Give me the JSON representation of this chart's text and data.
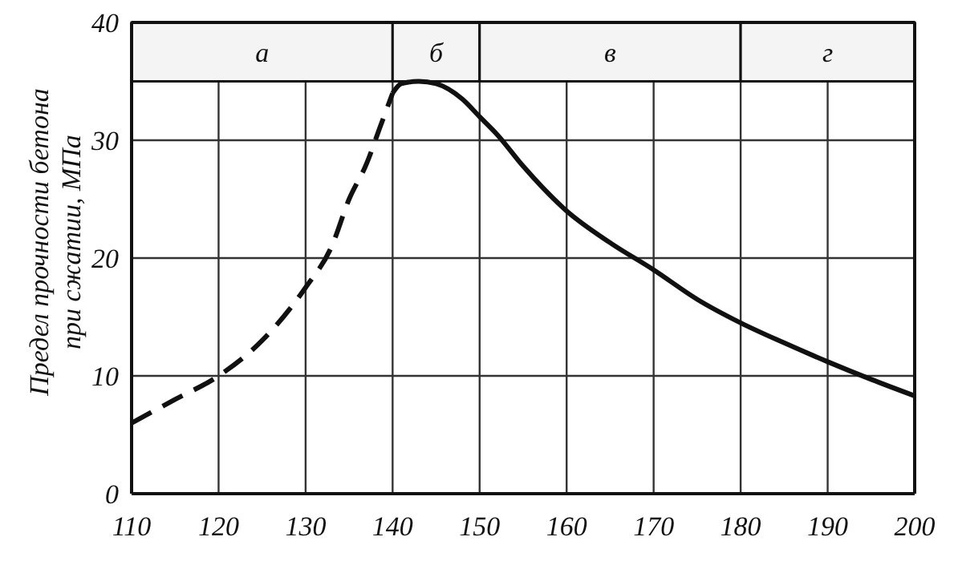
{
  "chart_data": {
    "type": "line",
    "ylabel": "Предел прочности бетона при сжатии, МПа",
    "xlim": [
      110,
      200
    ],
    "xticks": [
      110,
      120,
      130,
      140,
      150,
      160,
      170,
      180,
      190,
      200
    ],
    "ylim": [
      0,
      40
    ],
    "yticks": [
      0,
      10,
      20,
      30,
      40
    ],
    "grid": true,
    "marker": "none",
    "series": [
      {
        "color": "#111111",
        "line_style": "dashed",
        "x": [
          110,
          115,
          120,
          125,
          130,
          133,
          135,
          137,
          138.5,
          140
        ],
        "values": [
          6,
          8,
          10,
          13,
          17.5,
          21,
          25,
          28,
          31,
          34
        ]
      },
      {
        "color": "#111111",
        "line_style": "solid",
        "x": [
          140,
          141,
          143,
          145,
          148,
          150,
          152,
          155,
          160,
          165,
          170,
          175,
          180,
          185,
          190,
          195,
          200
        ],
        "values": [
          34,
          34.8,
          35,
          34.8,
          33.5,
          32,
          30.5,
          27.8,
          24,
          21.3,
          19,
          16.5,
          14.5,
          12.8,
          11.2,
          9.7,
          8.3
        ]
      }
    ],
    "ref_lines": [
      {
        "axis": "y",
        "value": 35,
        "label": null
      }
    ],
    "bands": [
      {
        "axis": "x",
        "from": 110,
        "to": 140,
        "label": "а",
        "color": "#f4f4f4"
      },
      {
        "axis": "x",
        "from": 140,
        "to": 150,
        "label": "б",
        "color": "#f4f4f4"
      },
      {
        "axis": "x",
        "from": 150,
        "to": 180,
        "label": "в",
        "color": "#f4f4f4"
      },
      {
        "axis": "x",
        "from": 180,
        "to": 200,
        "label": "г",
        "color": "#f4f4f4"
      }
    ]
  }
}
